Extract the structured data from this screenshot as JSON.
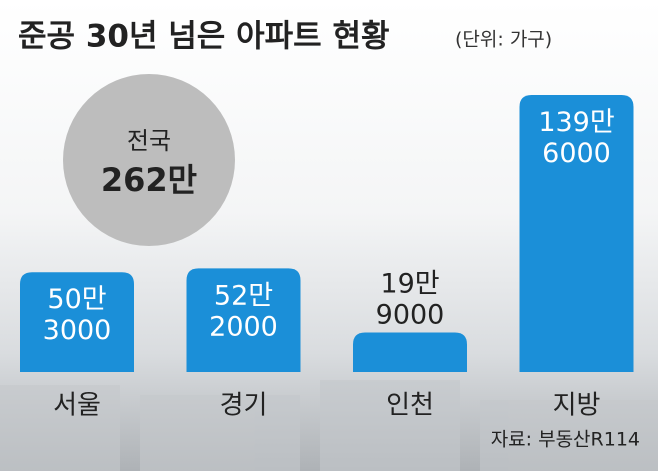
{
  "chart_data": {
    "type": "bar",
    "title": "준공 30년 넘은 아파트 현황",
    "unit": "(단위: 가구)",
    "categories": [
      "서울",
      "경기",
      "인천",
      "지방"
    ],
    "values": [
      503000,
      522000,
      199000,
      1396000
    ],
    "value_labels": [
      "50만 3000",
      "52만 2000",
      "19만 9000",
      "139만 6000"
    ],
    "color": "#1b8fd8",
    "total_label": "전국",
    "total_value": 2620000,
    "total_value_label": "262만",
    "source": "자료: 부동산R114"
  }
}
